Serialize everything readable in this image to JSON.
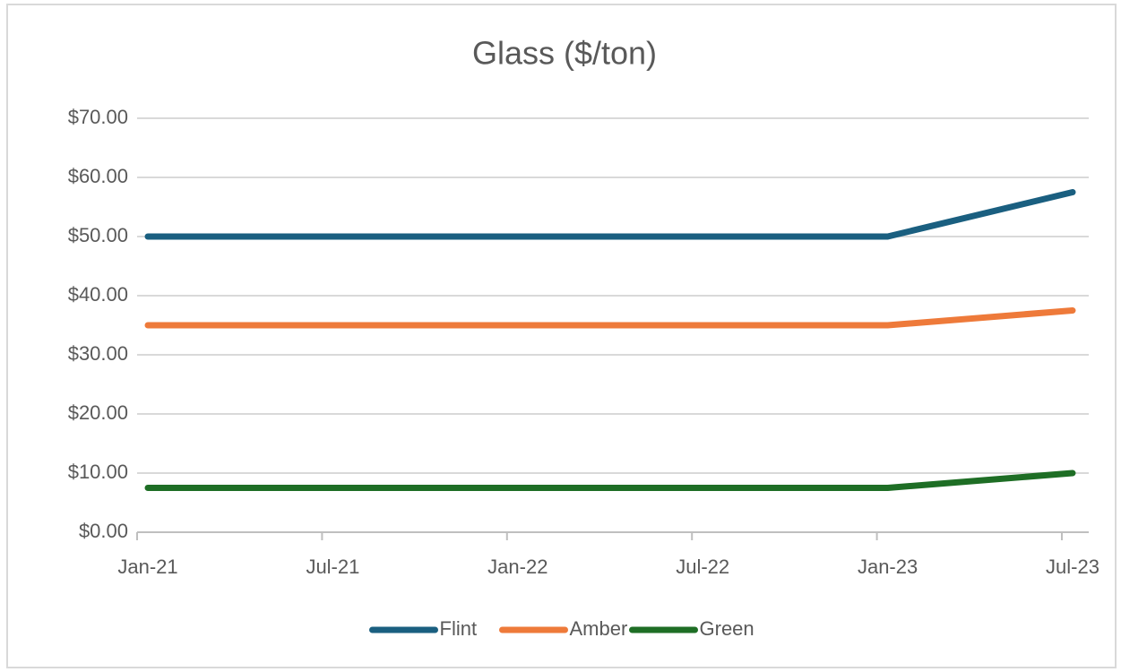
{
  "chart_data": {
    "type": "line",
    "title": "Glass ($/ton)",
    "x": [
      "Jan-21",
      "Jan-23",
      "Jul-23"
    ],
    "series": [
      {
        "name": "Flint",
        "color": "#1a5f80",
        "values": [
          50,
          50,
          57.5
        ]
      },
      {
        "name": "Amber",
        "color": "#ee7a3a",
        "values": [
          35,
          35,
          37.5
        ]
      },
      {
        "name": "Green",
        "color": "#1e6e25",
        "values": [
          7.5,
          7.5,
          10
        ]
      }
    ],
    "xlim": [
      "Jan-21",
      "Jul-23"
    ],
    "xticks": [
      "Jan-21",
      "Jul-21",
      "Jan-22",
      "Jul-22",
      "Jan-23",
      "Jul-23"
    ],
    "ylim": [
      0,
      70
    ],
    "yticks": [
      {
        "value": 0,
        "label": "$0.00"
      },
      {
        "value": 10,
        "label": "$10.00"
      },
      {
        "value": 20,
        "label": "$20.00"
      },
      {
        "value": 30,
        "label": "$30.00"
      },
      {
        "value": 40,
        "label": "$40.00"
      },
      {
        "value": 50,
        "label": "$50.00"
      },
      {
        "value": 60,
        "label": "$60.00"
      },
      {
        "value": 70,
        "label": "$70.00"
      }
    ],
    "grid": true,
    "legend": "bottom"
  }
}
